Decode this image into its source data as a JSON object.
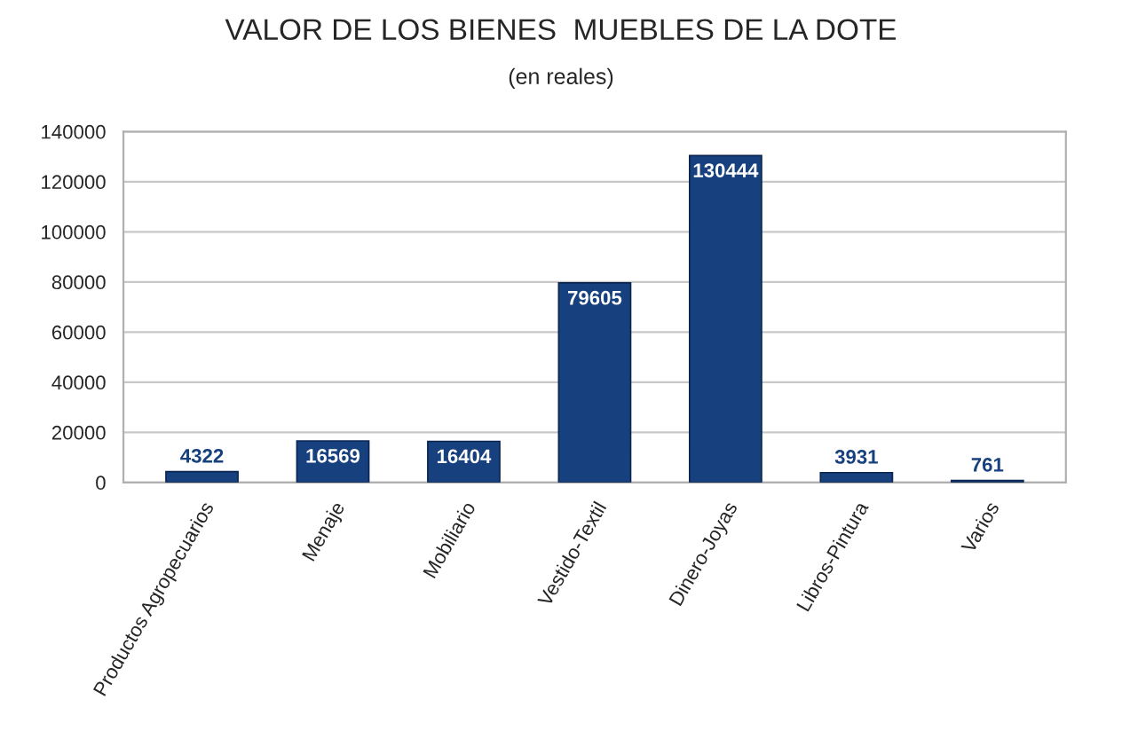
{
  "chart_data": {
    "type": "bar",
    "title": "VALOR DE LOS BIENES  MUEBLES DE LA DOTE",
    "subtitle": "(en reales)",
    "categories": [
      "Productos Agropecuarios",
      "Menaje",
      "Mobiliario",
      "Vestido-Textil",
      "Dinero-Joyas",
      "Libros-Pintura",
      "Varios"
    ],
    "values": [
      4322,
      16569,
      16404,
      79605,
      130444,
      3931,
      761
    ],
    "color": "#17407f",
    "ylim": [
      0,
      140000
    ],
    "yticks": [
      0,
      20000,
      40000,
      60000,
      80000,
      100000,
      120000,
      140000
    ],
    "grid": "y",
    "data_labels": true
  }
}
